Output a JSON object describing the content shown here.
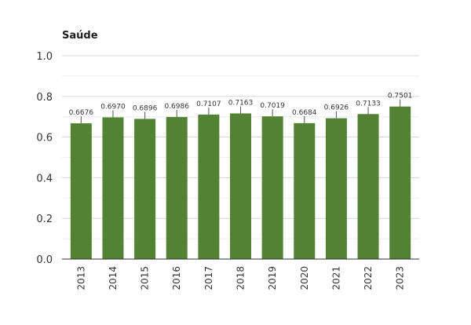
{
  "chart_data": {
    "type": "bar",
    "title": "Saúde",
    "xlabel": "",
    "ylabel": "",
    "categories": [
      "2013",
      "2014",
      "2015",
      "2016",
      "2017",
      "2018",
      "2019",
      "2020",
      "2021",
      "2022",
      "2023"
    ],
    "values": [
      0.6676,
      0.697,
      0.6896,
      0.6986,
      0.7107,
      0.7163,
      0.7019,
      0.6684,
      0.6926,
      0.7133,
      0.7501
    ],
    "data_labels": [
      "0.6676",
      "0.6970",
      "0.6896",
      "0.6986",
      "0.7107",
      "0.7163",
      "0.7019",
      "0.6684",
      "0.6926",
      "0.7133",
      "0.7501"
    ],
    "ylim": [
      0,
      1
    ],
    "yticks": [
      0,
      0.2,
      0.4,
      0.6,
      0.8,
      1.0
    ],
    "ytick_labels": [
      "0.0",
      "0.2",
      "0.4",
      "0.6",
      "0.8",
      "1.0"
    ],
    "grid": true,
    "legend": "none",
    "bar_color": "#548235"
  }
}
